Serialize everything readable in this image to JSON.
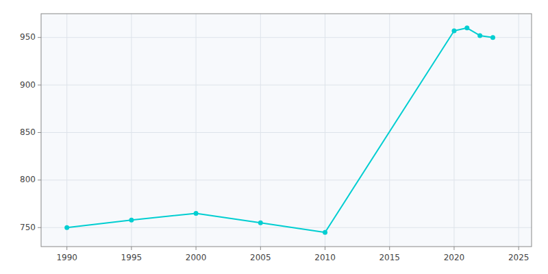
{
  "chart_data": {
    "type": "line",
    "x": [
      1990,
      1995,
      2000,
      2005,
      2010,
      2020,
      2021,
      2022,
      2023
    ],
    "values": [
      750,
      758,
      765,
      755,
      745,
      957,
      960,
      952,
      950
    ],
    "color": "#00CED1",
    "marker": "circle",
    "xlim": [
      1988,
      2026
    ],
    "ylim": [
      730,
      975
    ],
    "xticks": [
      1990,
      1995,
      2000,
      2005,
      2010,
      2015,
      2020,
      2025
    ],
    "yticks": [
      750,
      800,
      850,
      900,
      950
    ],
    "grid": true
  }
}
